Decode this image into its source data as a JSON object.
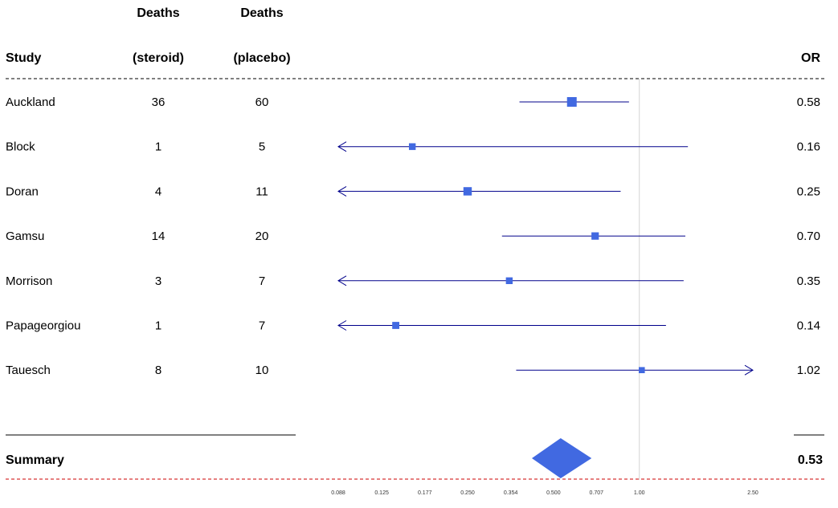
{
  "chart_data": {
    "type": "forest",
    "title": "",
    "scale": "log",
    "headers": {
      "study": "Study",
      "steroid_line1": "Deaths",
      "steroid_line2": "(steroid)",
      "placebo_line1": "Deaths",
      "placebo_line2": "(placebo)",
      "or": "OR"
    },
    "x_ticks": [
      "0.088",
      "0.125",
      "0.177",
      "0.250",
      "0.354",
      "0.500",
      "0.707",
      "1.00",
      "2.50"
    ],
    "xlim": [
      0.088,
      2.5
    ],
    "reference_line": 1.0,
    "studies": [
      {
        "name": "Auckland",
        "steroid": "36",
        "placebo": "60",
        "or_label": "0.58",
        "or": 0.58,
        "lo": 0.38,
        "hi": 0.92,
        "weight": 1.0
      },
      {
        "name": "Block",
        "steroid": "1",
        "placebo": "5",
        "or_label": "0.16",
        "or": 0.16,
        "lo": 0.02,
        "hi": 1.48,
        "weight": 0.55
      },
      {
        "name": "Doran",
        "steroid": "4",
        "placebo": "11",
        "or_label": "0.25",
        "or": 0.25,
        "lo": 0.06,
        "hi": 0.86,
        "weight": 0.8
      },
      {
        "name": "Gamsu",
        "steroid": "14",
        "placebo": "20",
        "or_label": "0.70",
        "or": 0.7,
        "lo": 0.33,
        "hi": 1.45,
        "weight": 0.65
      },
      {
        "name": "Morrison",
        "steroid": "3",
        "placebo": "7",
        "or_label": "0.35",
        "or": 0.35,
        "lo": 0.03,
        "hi": 1.43,
        "weight": 0.55
      },
      {
        "name": "Papageorgiou",
        "steroid": "1",
        "placebo": "7",
        "or_label": "0.14",
        "or": 0.14,
        "lo": 0.02,
        "hi": 1.24,
        "weight": 0.6
      },
      {
        "name": "Tauesch",
        "steroid": "8",
        "placebo": "10",
        "or_label": "1.02",
        "or": 1.02,
        "lo": 0.37,
        "hi": 2.9,
        "weight": 0.45
      }
    ],
    "summary": {
      "label": "Summary",
      "or_label": "0.53",
      "or": 0.53,
      "lo": 0.42,
      "hi": 0.68
    },
    "colors": {
      "box": "#4169E1",
      "ci_line": "#00008B",
      "summary": "#4169E1",
      "summary_rule": "#CC0000",
      "ref_line": "#D3D3D3"
    }
  }
}
